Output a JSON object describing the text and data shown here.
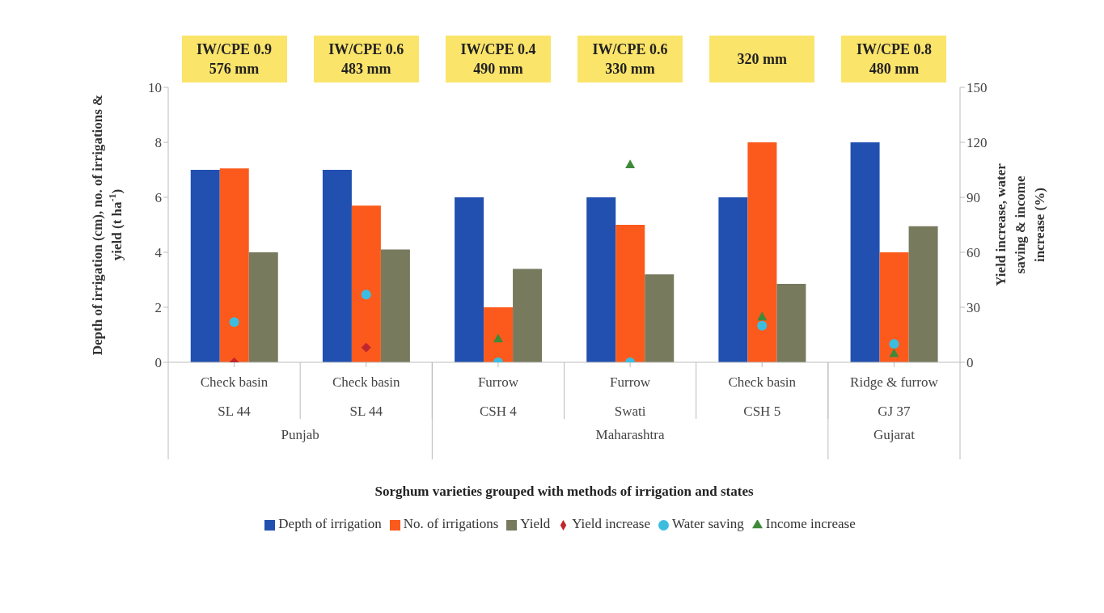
{
  "chart_data": {
    "type": "bar",
    "xlabel": "Sorghum varieties grouped with methods of irrigation and states",
    "ylabel": "Depth of irrigation (cm), no. of irrigations & yield (t ha$^{-1}$)",
    "y2label": "Yield increase, water saving & income increase (%)",
    "categories": [
      "Check basin\nSL 44",
      "Check basin\nSL 44",
      "Furrow\nCSH 4",
      "Furrow\nSwati",
      "Check basin\nCSH 5",
      "Ridge & furrow\nGJ 37"
    ],
    "series": [
      {
        "name": "Depth of irrigation",
        "color": "#2150b0",
        "values": [
          7,
          7,
          6,
          6,
          6,
          8
        ]
      },
      {
        "name": "No. of irrigations",
        "color": "#fb5a1c",
        "values": [
          7.05,
          5.7,
          2,
          5,
          8,
          4
        ]
      },
      {
        "name": "Yield",
        "color": "#777a5d",
        "values": [
          4,
          4.1,
          3.4,
          3.2,
          2.85,
          4.95
        ]
      },
      {
        "name": "Yield increase",
        "type": "scatter",
        "axis": "y2",
        "marker": "diamond",
        "color": "#c0262d",
        "values": [
          0,
          8,
          null,
          null,
          null,
          null
        ]
      },
      {
        "name": "Water saving",
        "type": "scatter",
        "axis": "y2",
        "marker": "circle",
        "color": "#3cbde0",
        "values": [
          22,
          37,
          0,
          0,
          20,
          10
        ]
      },
      {
        "name": "Income increase",
        "type": "scatter",
        "axis": "y2",
        "marker": "triangle",
        "color": "#3e8a3a",
        "values": [
          null,
          null,
          13,
          108,
          25,
          5
        ]
      }
    ],
    "ylim": [
      0,
      10
    ],
    "yticks": [
      0,
      2,
      4,
      6,
      8,
      10
    ],
    "y2lim": [
      0,
      150
    ],
    "y2ticks": [
      0,
      30,
      60,
      90,
      120,
      150
    ],
    "annotations": [
      "IW/CPE 0.9\n576 mm",
      "IW/CPE 0.6\n483 mm",
      "IW/CPE 0.4\n490 mm",
      "IW/CPE 0.6\n330 mm",
      "320 mm",
      "IW/CPE 0.8\n480 mm",
      "Punjab",
      "Maharashtra",
      "Gujarat"
    ],
    "legend": "bottom"
  }
}
